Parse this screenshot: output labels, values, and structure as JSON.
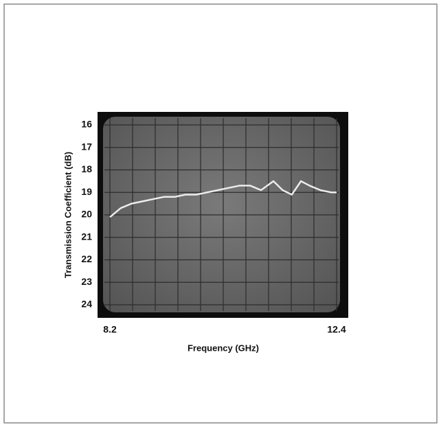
{
  "chart_data": {
    "type": "line",
    "xlabel": "Frequency (GHz)",
    "ylabel": "Transmission Coefficient (dB)",
    "x": [
      8.2,
      8.4,
      8.6,
      8.8,
      9.0,
      9.2,
      9.4,
      9.6,
      9.8,
      10.0,
      10.2,
      10.4,
      10.6,
      10.8,
      11.0,
      11.23,
      11.4,
      11.57,
      11.74,
      11.9,
      12.1,
      12.3,
      12.4
    ],
    "values": [
      20.1,
      19.7,
      19.5,
      19.4,
      19.3,
      19.2,
      19.2,
      19.1,
      19.1,
      19.0,
      18.9,
      18.8,
      18.7,
      18.7,
      18.9,
      18.5,
      18.9,
      19.1,
      18.5,
      18.7,
      18.9,
      19.0,
      19.0
    ],
    "color": "#ececec",
    "xlim": [
      8.2,
      12.4
    ],
    "xticks": [
      8.2,
      12.4
    ],
    "ylim": [
      24,
      16
    ],
    "yticks": [
      16,
      17,
      18,
      19,
      20,
      21,
      22,
      23,
      24
    ],
    "grid": true
  }
}
